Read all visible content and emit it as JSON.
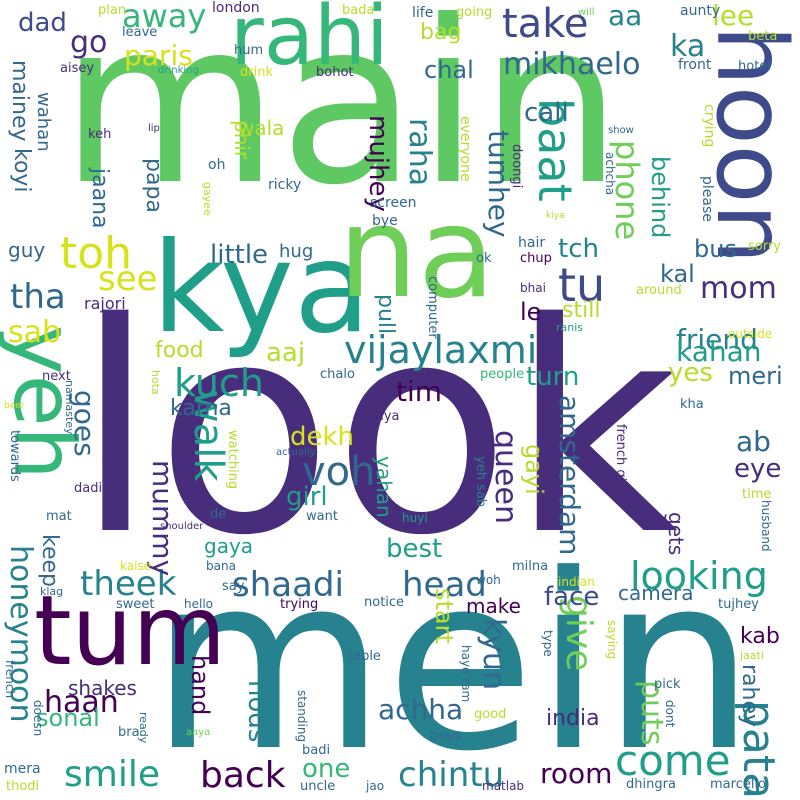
{
  "palette": {
    "dark_purple": "#472d7b",
    "deep_purple": "#440154",
    "indigo": "#3e4a89",
    "blue": "#31688e",
    "teal": "#26828e",
    "green_teal": "#1f9e89",
    "green": "#35b779",
    "light_green": "#6ece58",
    "yellow_green": "#b5de2b",
    "yellow": "#d8e219"
  },
  "words": [
    "look",
    "main",
    "mein",
    "kya",
    "hoon",
    "yeh",
    "rahi",
    "na",
    "tum",
    "tu",
    "vijaylaxmi",
    "baat",
    "toh",
    "walk",
    "kuch",
    "pata",
    "voh",
    "looking",
    "theek",
    "shaadi",
    "head",
    "smile",
    "back",
    "chintu",
    "come",
    "give",
    "honeymoon",
    "mummy",
    "amsterdam",
    "queen",
    "away",
    "take",
    "go",
    "paris",
    "mikhaelo",
    "phone",
    "raha",
    "tumhey",
    "mujhey",
    "mom",
    "tha",
    "see",
    "little",
    "friend",
    "kahan",
    "yes",
    "meri",
    "aaj",
    "food",
    "sab",
    "goes",
    "karna",
    "tim",
    "turn",
    "dekh",
    "girl",
    "keep",
    "best",
    "face",
    "start",
    "kyun",
    "achha",
    "india",
    "room",
    "one",
    "nods",
    "hand",
    "haan",
    "sonal",
    "puts",
    "rahey",
    "kab",
    "camera",
    "make",
    "shakes",
    "gets",
    "eye",
    "ab",
    "gayi",
    "yahan",
    "gaya",
    "dad",
    "aa",
    "ka",
    "lee",
    "bag",
    "chal",
    "call",
    "le",
    "still",
    "tch",
    "kal",
    "bus",
    "behind",
    "jaana",
    "papa",
    "phir",
    "wala",
    "koyi",
    "mainey",
    "wahan",
    "hug",
    "guy",
    "rajori",
    "pull",
    "tha",
    "le",
    "london",
    "plan",
    "bada",
    "life",
    "going",
    "will",
    "aunty",
    "beta",
    "front",
    "hotel",
    "leave",
    "hum",
    "aisey",
    "drinking",
    "drink",
    "bohot",
    "keh",
    "lip",
    "everyone",
    "doongi",
    "achcha",
    "show",
    "crying",
    "please",
    "oh",
    "gayee",
    "ricky",
    "screen",
    "bye",
    "hair",
    "ok",
    "chup",
    "bhai",
    "computer",
    "kiya",
    "sorry",
    "around",
    "ranis",
    "outside",
    "next",
    "namastey",
    "hota",
    "beer",
    "chalo",
    "people",
    "diya",
    "kha",
    "towards",
    "actually",
    "yeh sab",
    "french girl",
    "dadi",
    "watching",
    "time",
    "mat",
    "shoulder",
    "de",
    "want",
    "huyi",
    "husband",
    "kaise",
    "bana",
    "klag",
    "say",
    "milna",
    "indian",
    "sweet",
    "hello",
    "trying",
    "notice",
    "woh",
    "tujhey",
    "type",
    "saying",
    "haye ram",
    "jaati",
    "pick",
    "table",
    "french",
    "doesn",
    "bra",
    "ready",
    "standing",
    "good",
    "dont",
    "aaya",
    "badi",
    "boys",
    "mera",
    "thodi",
    "uncle",
    "jao",
    "matlab",
    "dhingra",
    "marcello"
  ]
}
